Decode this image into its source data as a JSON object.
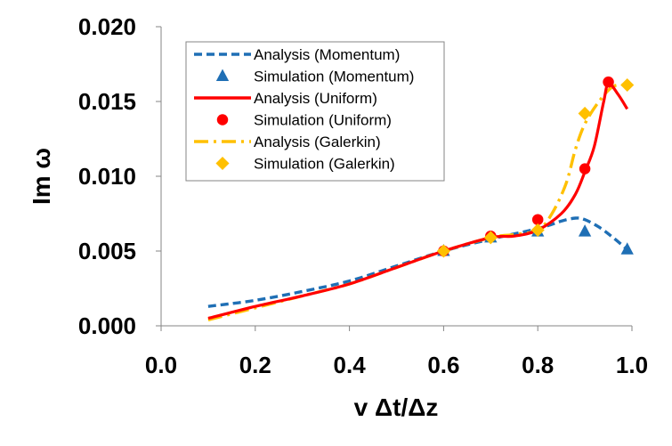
{
  "chart_data": {
    "type": "line",
    "title": "",
    "xlabel": "v Δt/Δz",
    "ylabel": "Im ω",
    "xlim": [
      0.0,
      1.0
    ],
    "ylim": [
      0.0,
      0.02
    ],
    "x_ticks": [
      "0.0",
      "0.2",
      "0.4",
      "0.6",
      "0.8",
      "1.0"
    ],
    "y_ticks": [
      "0.000",
      "0.005",
      "0.010",
      "0.015",
      "0.020"
    ],
    "grid": false,
    "legend_position": "top-center",
    "series": [
      {
        "name": "Analysis (Momentum)",
        "kind": "line",
        "style": "dashed",
        "color": "#1f6fb5",
        "x": [
          0.1,
          0.2,
          0.3,
          0.4,
          0.5,
          0.6,
          0.7,
          0.8,
          0.85,
          0.88,
          0.9,
          0.93,
          0.96,
          0.99
        ],
        "y": [
          0.0013,
          0.0017,
          0.0023,
          0.003,
          0.004,
          0.005,
          0.0058,
          0.0065,
          0.007,
          0.0072,
          0.0071,
          0.0066,
          0.0059,
          0.0051
        ]
      },
      {
        "name": "Simulation (Momentum)",
        "kind": "marker",
        "marker": "triangle",
        "color": "#1f6fb5",
        "x": [
          0.6,
          0.7,
          0.8,
          0.9,
          0.99
        ],
        "y": [
          0.005,
          0.0059,
          0.0063,
          0.0063,
          0.0051
        ]
      },
      {
        "name": "Analysis (Uniform)",
        "kind": "line",
        "style": "solid",
        "color": "#ff0000",
        "x": [
          0.1,
          0.2,
          0.3,
          0.4,
          0.5,
          0.6,
          0.7,
          0.75,
          0.8,
          0.85,
          0.88,
          0.9,
          0.92,
          0.94,
          0.95,
          0.97,
          0.99
        ],
        "y": [
          0.0005,
          0.0013,
          0.002,
          0.0028,
          0.0039,
          0.005,
          0.0059,
          0.006,
          0.0064,
          0.0075,
          0.0088,
          0.0103,
          0.012,
          0.015,
          0.0162,
          0.0155,
          0.0145
        ]
      },
      {
        "name": "Simulation (Uniform)",
        "kind": "marker",
        "marker": "circle",
        "color": "#ff0000",
        "x": [
          0.6,
          0.7,
          0.8,
          0.9,
          0.95
        ],
        "y": [
          0.005,
          0.006,
          0.0071,
          0.0105,
          0.0163
        ]
      },
      {
        "name": "Analysis (Galerkin)",
        "kind": "line",
        "style": "dashdot",
        "color": "#ffc000",
        "x": [
          0.1,
          0.2,
          0.3,
          0.4,
          0.5,
          0.6,
          0.7,
          0.75,
          0.8,
          0.83,
          0.86,
          0.88,
          0.9,
          0.93,
          0.96,
          0.99
        ],
        "y": [
          0.0004,
          0.0012,
          0.002,
          0.0028,
          0.0039,
          0.005,
          0.0059,
          0.0061,
          0.0064,
          0.0075,
          0.0095,
          0.0118,
          0.0135,
          0.015,
          0.016,
          0.0161
        ]
      },
      {
        "name": "Simulation (Galerkin)",
        "kind": "marker",
        "marker": "diamond",
        "color": "#ffc000",
        "x": [
          0.6,
          0.7,
          0.8,
          0.9,
          0.99
        ],
        "y": [
          0.005,
          0.0059,
          0.0064,
          0.0142,
          0.0161
        ]
      }
    ]
  }
}
